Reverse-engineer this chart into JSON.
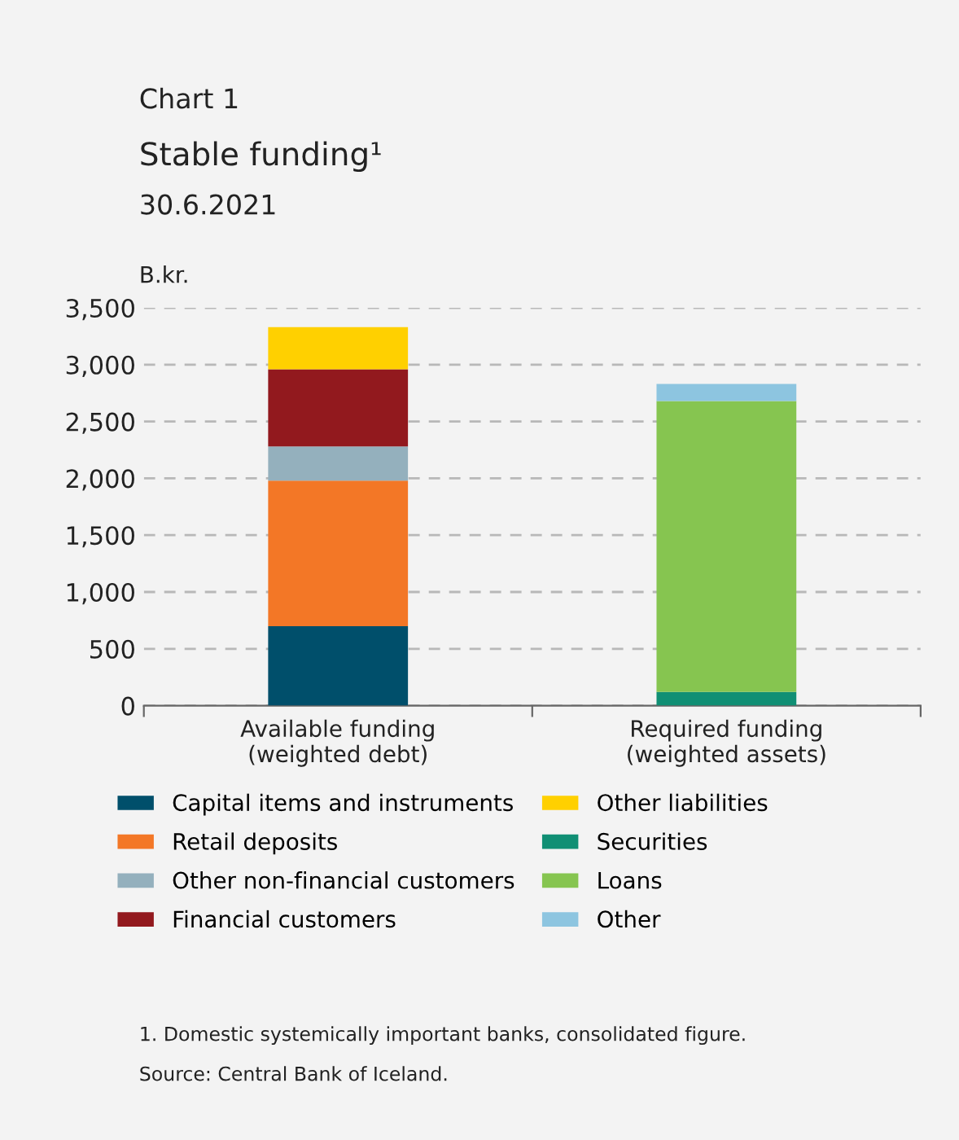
{
  "chart_data": {
    "type": "bar",
    "stacked": true,
    "title": "Chart 1",
    "subtitle": "Stable funding¹",
    "ylabel": "B.kr.",
    "categories": [
      "Available funding\n(weighted debt)",
      "Required funding\n(weighted assets)"
    ],
    "series": [
      {
        "name": "Capital items and instruments",
        "color": "#004f6b",
        "values": [
          700,
          null
        ]
      },
      {
        "name": "Retail deposits",
        "color": "#f37726",
        "values": [
          1280,
          null
        ]
      },
      {
        "name": "Other non-financial customers",
        "color": "#94b0bd",
        "values": [
          300,
          null
        ]
      },
      {
        "name": "Financial customers",
        "color": "#92191e",
        "values": [
          680,
          null
        ]
      },
      {
        "name": "Other liabilities",
        "color": "#ffd000",
        "values": [
          370,
          null
        ]
      },
      {
        "name": "Securities",
        "color": "#108f74",
        "values": [
          null,
          120
        ]
      },
      {
        "name": "Loans",
        "color": "#86c550",
        "values": [
          null,
          2560
        ]
      },
      {
        "name": "Other",
        "color": "#8dc5e0",
        "values": [
          null,
          150
        ]
      }
    ],
    "ylim": [
      0,
      3500
    ],
    "yticks": [
      0,
      {
        "value": 500,
        "label": "500"
      },
      {
        "value": 1000,
        "label": "1,000"
      },
      {
        "value": 1500,
        "label": "1,500"
      },
      {
        "value": 2000,
        "label": "2,000"
      },
      {
        "value": 2500,
        "label": "2,500"
      },
      {
        "value": 3000,
        "label": "3,000"
      },
      {
        "value": 3500,
        "label": "3,500"
      }
    ],
    "grid": "y",
    "legend": "bottom",
    "annotations": [
      "30.6.2021",
      "1. Domestic systemically important banks, consolidated figure.",
      "Source: Central Bank of Iceland."
    ]
  }
}
